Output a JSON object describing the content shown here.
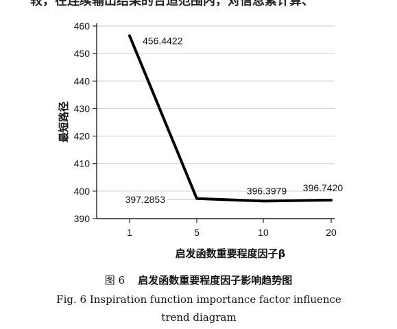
{
  "page": {
    "top_partial_text": "较，在连续输出结果的合适范围内，对信息素计算、",
    "caption_cn_num": "图 6",
    "caption_cn_text": "启发函数重要程度因子影响趋势图",
    "caption_en": "Fig. 6 Inspiration function importance factor influence trend diagram"
  },
  "chart_data": {
    "type": "line",
    "title": "",
    "xlabel": "启发函数重要程度因子β",
    "ylabel": "最短路径",
    "categories": [
      "1",
      "5",
      "10",
      "20"
    ],
    "series": [
      {
        "name": "最短路径",
        "values": [
          456.4422,
          397.2853,
          396.3979,
          396.742
        ],
        "labels": [
          "456.4422",
          "397.2853",
          "396.3979",
          "396.7420"
        ],
        "color": "#000000"
      }
    ],
    "ylim": [
      390,
      460
    ],
    "yticks": [
      390,
      400,
      410,
      420,
      430,
      440,
      450,
      460
    ],
    "grid": true,
    "legend": "none"
  }
}
